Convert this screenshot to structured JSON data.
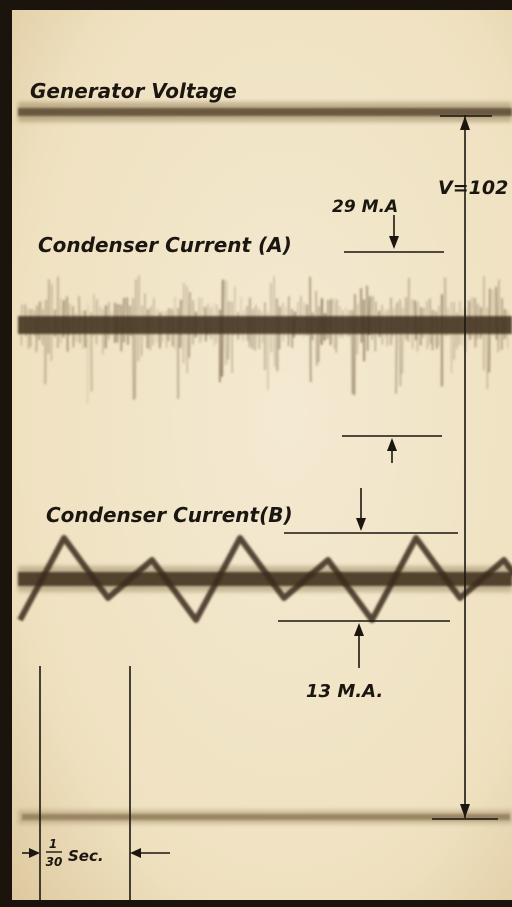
{
  "photo": {
    "labels": {
      "generator_voltage": "Generator Voltage",
      "voltage_value": "V=102",
      "condenser_current_a": "Condenser Current (A)",
      "current_a_value": "29 M.A",
      "condenser_current_b": "Condenser Current(B)",
      "current_b_value": "13 M.A.",
      "time_unit": "Sec."
    },
    "time_fraction": {
      "numerator": "1",
      "denominator": "30"
    },
    "colors": {
      "paper": "#f2e7cc",
      "paper_edge": "#e6d6b0",
      "trace": "#4a3a26",
      "trace_glow": "#8f7a58",
      "ink": "#1b1610",
      "frame": "#1a140c"
    }
  }
}
